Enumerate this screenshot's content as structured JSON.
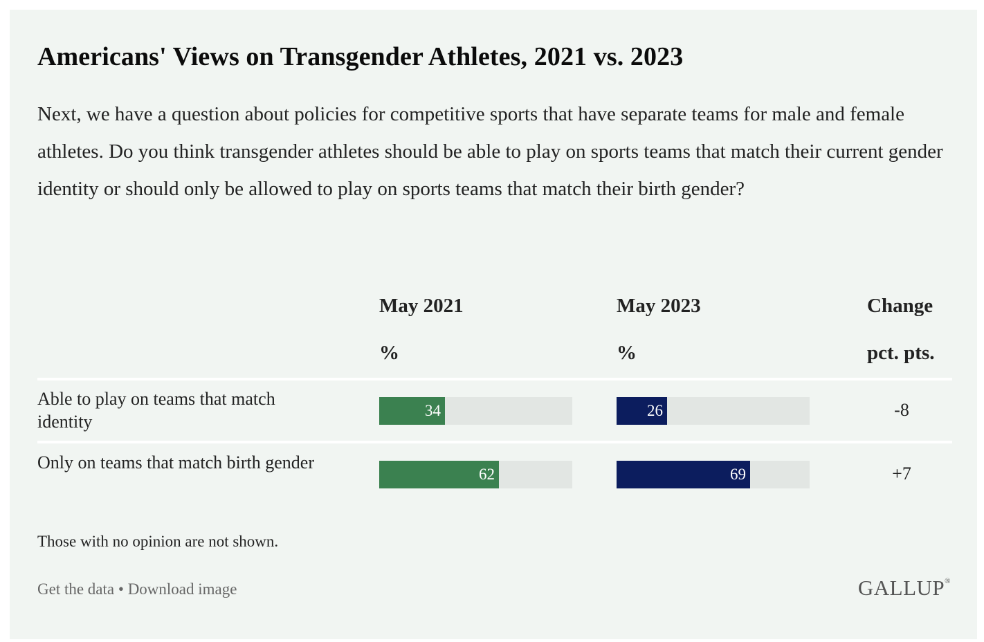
{
  "title": "Americans' Views on Transgender Athletes, 2021 vs. 2023",
  "question": "Next, we have a question about policies for competitive sports that have separate teams for male and female athletes. Do you think transgender athletes should be able to play on sports teams that match their current gender identity or should only be allowed to play on sports teams that match their birth gender?",
  "columns": {
    "may2021": {
      "label": "May 2021",
      "sub": "%"
    },
    "may2023": {
      "label": "May 2023",
      "sub": "%"
    },
    "change": {
      "label": "Change",
      "sub": "pct. pts."
    }
  },
  "colors": {
    "may2021": "#3b8150",
    "may2023": "#0c1d5e",
    "track": "#e2e6e3"
  },
  "chart_data": {
    "type": "bar",
    "title": "Americans' Views on Transgender Athletes, 2021 vs. 2023",
    "categories": [
      "Able to play on teams that match identity",
      "Only on teams that match birth gender"
    ],
    "series": [
      {
        "name": "May 2021",
        "values": [
          34,
          62
        ]
      },
      {
        "name": "May 2023",
        "values": [
          26,
          69
        ]
      }
    ],
    "change": [
      "-8",
      "+7"
    ],
    "ylim": [
      0,
      100
    ],
    "unit": "%"
  },
  "note": "Those with no opinion are not shown.",
  "footer": {
    "get_data": "Get the data",
    "separator": " • ",
    "download": "Download image",
    "logo": "GALLUP",
    "logo_mark": "®"
  }
}
